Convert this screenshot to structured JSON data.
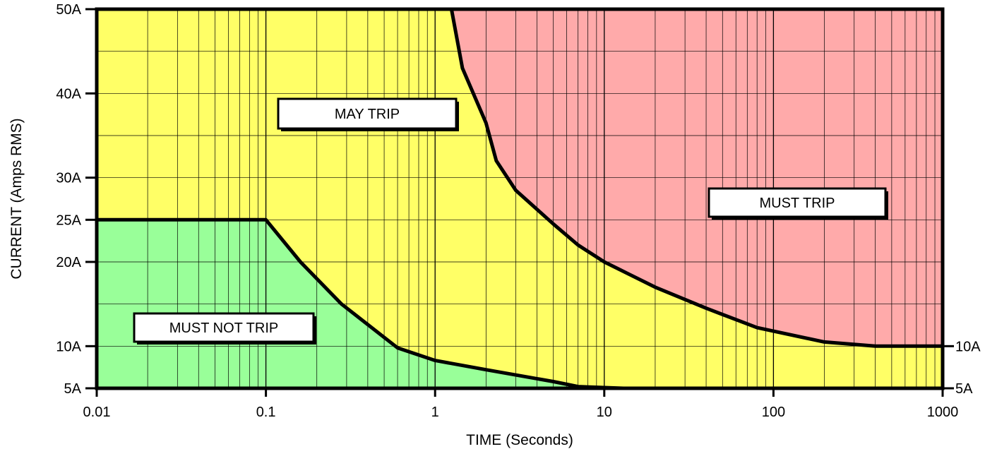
{
  "chart_data": {
    "type": "area",
    "xlabel": "TIME (Seconds)",
    "ylabel": "CURRENT (Amps RMS)",
    "x_scale": "log",
    "xlim": [
      0.01,
      1000
    ],
    "ylim": [
      5,
      50
    ],
    "x_ticks": [
      {
        "value": 0.01,
        "label": "0.01"
      },
      {
        "value": 0.1,
        "label": "0.1"
      },
      {
        "value": 1,
        "label": "1"
      },
      {
        "value": 10,
        "label": "10"
      },
      {
        "value": 100,
        "label": "100"
      },
      {
        "value": 1000,
        "label": "1000"
      }
    ],
    "y_ticks": [
      {
        "value": 50,
        "label": "50A"
      },
      {
        "value": 40,
        "label": "40A"
      },
      {
        "value": 30,
        "label": "30A"
      },
      {
        "value": 25,
        "label": "25A"
      },
      {
        "value": 20,
        "label": "20A"
      },
      {
        "value": 10,
        "label": "10A"
      },
      {
        "value": 5,
        "label": "5A"
      }
    ],
    "right_labels": [
      {
        "value": 10,
        "label": "10A"
      },
      {
        "value": 5,
        "label": "5A"
      }
    ],
    "grid": true,
    "regions": [
      {
        "name": "MUST NOT TRIP",
        "color": "#99ff99"
      },
      {
        "name": "MAY TRIP",
        "color": "#ffff66"
      },
      {
        "name": "MUST TRIP",
        "color": "#ffaaaa"
      }
    ],
    "series": [
      {
        "name": "must-not-trip-curve",
        "points": [
          [
            0.01,
            25
          ],
          [
            0.1,
            25
          ],
          [
            0.16,
            20
          ],
          [
            0.28,
            15
          ],
          [
            0.6,
            9.8
          ],
          [
            1,
            8.3
          ],
          [
            2,
            7.2
          ],
          [
            5,
            5.8
          ],
          [
            7,
            5.2
          ],
          [
            13,
            5
          ]
        ]
      },
      {
        "name": "must-trip-curve",
        "points": [
          [
            1.25,
            50
          ],
          [
            1.45,
            43
          ],
          [
            2,
            36.5
          ],
          [
            2.3,
            32
          ],
          [
            3,
            28.5
          ],
          [
            5,
            24.5
          ],
          [
            7,
            22
          ],
          [
            10,
            20
          ],
          [
            20,
            17
          ],
          [
            40,
            14.5
          ],
          [
            80,
            12.2
          ],
          [
            200,
            10.5
          ],
          [
            400,
            10
          ],
          [
            1000,
            10
          ]
        ]
      }
    ],
    "annotations": [
      {
        "text": "MUST NOT TRIP",
        "region": "MUST NOT TRIP"
      },
      {
        "text": "MAY TRIP",
        "region": "MAY TRIP"
      },
      {
        "text": "MUST TRIP",
        "region": "MUST TRIP"
      }
    ]
  }
}
